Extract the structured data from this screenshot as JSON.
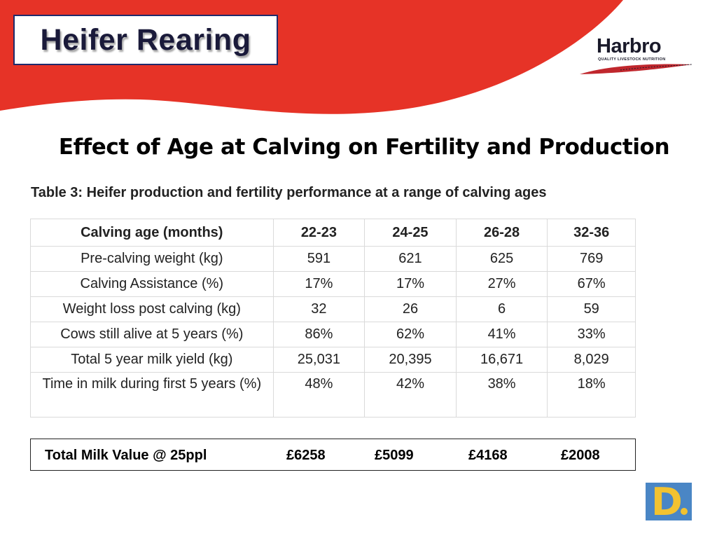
{
  "slide": {
    "title": "Heifer Rearing",
    "subtitle": "Effect of Age at Calving on Fertility and Production",
    "colors": {
      "banner_red": "#e63327",
      "title_border": "#1f2a6b",
      "d_logo_blue": "#4a86c5",
      "d_logo_yellow": "#f2c230"
    }
  },
  "logo": {
    "name": "Harbro",
    "tagline": "QUALITY LIVESTOCK NUTRITION",
    "icon": "harbro-swoosh-logo"
  },
  "table": {
    "caption": "Table 3: Heifer production and fertility performance at a range of calving ages",
    "headers": [
      "Calving age (months)",
      "22-23",
      "24-25",
      "26-28",
      "32-36"
    ],
    "rows": [
      [
        "Pre-calving weight (kg)",
        "591",
        "621",
        "625",
        "769"
      ],
      [
        "Calving Assistance (%)",
        "17%",
        "17%",
        "27%",
        "67%"
      ],
      [
        "Weight loss post calving (kg)",
        "32",
        "26",
        "6",
        "59"
      ],
      [
        "Cows still alive at 5 years (%)",
        "86%",
        "62%",
        "41%",
        "33%"
      ],
      [
        "Total 5 year milk yield (kg)",
        "25,031",
        "20,395",
        "16,671",
        "8,029"
      ],
      [
        "Time in milk during first 5 years (%)",
        "48%",
        "42%",
        "38%",
        "18%"
      ]
    ]
  },
  "totals": {
    "label": "Total Milk Value @ 25ppl",
    "values": [
      "£6258",
      "£5099",
      "£4168",
      "£2008"
    ]
  },
  "corner_logo": {
    "letter": "D",
    "icon": "d-logo-icon"
  }
}
